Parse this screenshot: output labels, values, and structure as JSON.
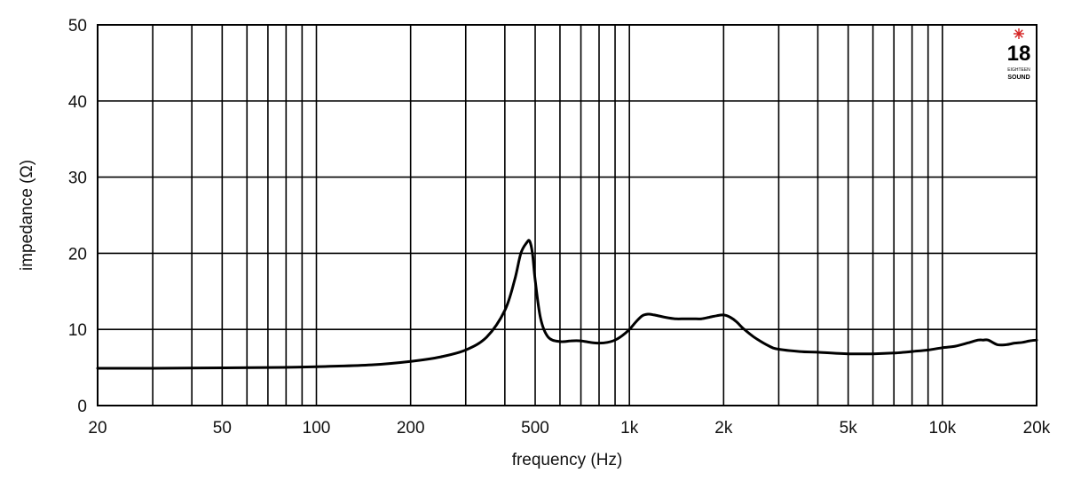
{
  "chart_data": {
    "type": "line",
    "title": "",
    "xlabel": "frequency (Hz)",
    "ylabel": "impedance (Ω)",
    "x_scale": "log",
    "xlim": [
      20,
      20000
    ],
    "ylim": [
      0,
      50
    ],
    "grid": true,
    "x_ticks": [
      {
        "value": 20,
        "label": "20"
      },
      {
        "value": 50,
        "label": "50"
      },
      {
        "value": 100,
        "label": "100"
      },
      {
        "value": 200,
        "label": "200"
      },
      {
        "value": 500,
        "label": "500"
      },
      {
        "value": 1000,
        "label": "1k"
      },
      {
        "value": 2000,
        "label": "2k"
      },
      {
        "value": 5000,
        "label": "5k"
      },
      {
        "value": 10000,
        "label": "10k"
      },
      {
        "value": 20000,
        "label": "20k"
      }
    ],
    "y_ticks": [
      {
        "value": 0,
        "label": "0"
      },
      {
        "value": 10,
        "label": "10"
      },
      {
        "value": 20,
        "label": "20"
      },
      {
        "value": 30,
        "label": "30"
      },
      {
        "value": 40,
        "label": "40"
      },
      {
        "value": 50,
        "label": "50"
      }
    ],
    "x_gridlines": [
      20,
      30,
      40,
      50,
      60,
      70,
      80,
      90,
      100,
      200,
      300,
      400,
      500,
      600,
      700,
      800,
      900,
      1000,
      2000,
      3000,
      4000,
      5000,
      6000,
      7000,
      8000,
      9000,
      10000,
      20000
    ],
    "y_gridlines": [
      0,
      10,
      20,
      30,
      40,
      50
    ],
    "series": [
      {
        "color": "#000000",
        "x": [
          20,
          30,
          50,
          70,
          100,
          150,
          200,
          250,
          300,
          350,
          400,
          430,
          450,
          470,
          480,
          490,
          500,
          520,
          550,
          600,
          650,
          700,
          750,
          800,
          850,
          900,
          950,
          1000,
          1050,
          1100,
          1150,
          1200,
          1300,
          1400,
          1500,
          1600,
          1700,
          1800,
          1900,
          2000,
          2100,
          2200,
          2300,
          2500,
          2800,
          3000,
          3500,
          4000,
          5000,
          6000,
          7000,
          8000,
          9000,
          10000,
          11000,
          12000,
          13000,
          13500,
          14000,
          15000,
          16000,
          17000,
          18000,
          19000,
          20000
        ],
        "y": [
          4.9,
          4.9,
          4.95,
          5.0,
          5.1,
          5.35,
          5.8,
          6.4,
          7.3,
          9.0,
          12.5,
          16.5,
          20.0,
          21.4,
          21.6,
          20.0,
          16.5,
          11.5,
          9.0,
          8.4,
          8.5,
          8.5,
          8.3,
          8.2,
          8.3,
          8.6,
          9.2,
          10.0,
          11.0,
          11.8,
          12.0,
          11.9,
          11.6,
          11.4,
          11.4,
          11.4,
          11.4,
          11.6,
          11.8,
          11.9,
          11.6,
          11.0,
          10.2,
          9.0,
          7.8,
          7.4,
          7.1,
          7.0,
          6.8,
          6.8,
          6.9,
          7.1,
          7.3,
          7.6,
          7.8,
          8.2,
          8.6,
          8.6,
          8.6,
          8.0,
          8.0,
          8.2,
          8.3,
          8.5,
          8.6
        ]
      }
    ]
  },
  "logo": {
    "number": "18",
    "line1": "EIGHTEEN",
    "line2": "SOUND",
    "star_color": "#d42020"
  }
}
